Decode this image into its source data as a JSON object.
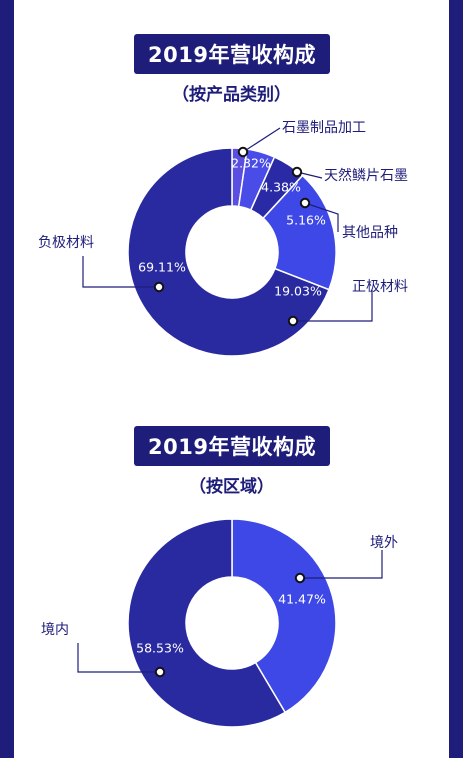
{
  "chart_data": [
    {
      "type": "pie",
      "title": "2019年营收构成",
      "subtitle": "（按产品类别）",
      "categories": [
        "石墨制品加工",
        "天然鳞片石墨",
        "其他品种",
        "正极材料",
        "负极材料"
      ],
      "values": [
        2.32,
        4.38,
        5.16,
        19.03,
        69.11
      ],
      "value_labels": [
        "2.32%",
        "4.38%",
        "5.16%",
        "19.03%",
        "69.11%"
      ],
      "colors": [
        "#5a4fe0",
        "#4a4ce8",
        "#2b2aa6",
        "#3d48e6",
        "#2a2aa0"
      ]
    },
    {
      "type": "pie",
      "title": "2019年营收构成",
      "subtitle": "（按区域）",
      "categories": [
        "境外",
        "境内"
      ],
      "values": [
        41.47,
        58.53
      ],
      "value_labels": [
        "41.47%",
        "58.53%"
      ],
      "colors": [
        "#3d48e6",
        "#2a2aa0"
      ]
    }
  ],
  "colors": {
    "frame": "#1f1d7a",
    "panel": "#ffffff",
    "label": "#1f1d7a",
    "leader": "#1f1d7a"
  }
}
